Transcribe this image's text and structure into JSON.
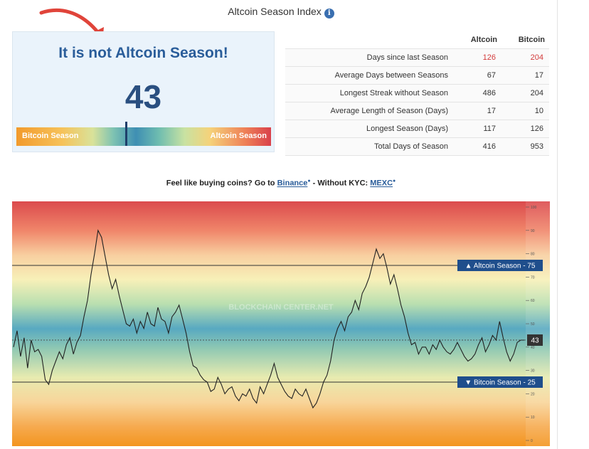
{
  "header": {
    "title": "Altcoin Season Index",
    "info_icon": "info-icon"
  },
  "status": {
    "headline": "It is not Altcoin Season!",
    "index_value": "43",
    "index_numeric": 43,
    "gauge_left_label": "Bitcoin Season",
    "gauge_right_label": "Altcoin Season"
  },
  "stats": {
    "columns": [
      "Altcoin",
      "Bitcoin"
    ],
    "rows": [
      {
        "label": "Days since last Season",
        "altcoin": "126",
        "bitcoin": "204",
        "highlight": true
      },
      {
        "label": "Average Days between Seasons",
        "altcoin": "67",
        "bitcoin": "17"
      },
      {
        "label": "Longest Streak without Season",
        "altcoin": "486",
        "bitcoin": "204"
      },
      {
        "label": "Average Length of Season (Days)",
        "altcoin": "17",
        "bitcoin": "10"
      },
      {
        "label": "Longest Season (Days)",
        "altcoin": "117",
        "bitcoin": "126"
      },
      {
        "label": "Total Days of Season",
        "altcoin": "416",
        "bitcoin": "953"
      }
    ]
  },
  "promo": {
    "prefix": "Feel like buying coins? Go to ",
    "link1": "Binance",
    "middle": " - Without KYC: ",
    "link2": "MEXC"
  },
  "colors": {
    "accent": "#2a5d9a",
    "highlight_red": "#d33a3a",
    "marker_blue": "#1f4e8c"
  },
  "chart_data": {
    "type": "line",
    "ylim": [
      0,
      100
    ],
    "yticks": [
      "0",
      "10",
      "20",
      "30",
      "40",
      "50",
      "60",
      "70",
      "80",
      "90",
      "100"
    ],
    "watermark": "BLOCKCHAIN CENTER.NET",
    "altcoin_line": {
      "value": 75,
      "label": "▲ Altcoin Season - 75"
    },
    "bitcoin_line": {
      "value": 25,
      "label": "▼ Bitcoin Season - 25"
    },
    "current": {
      "value": 43,
      "label": "43"
    },
    "series": [
      {
        "values": [
          40,
          47,
          36,
          44,
          31,
          43,
          38,
          39,
          36,
          26,
          24,
          30,
          34,
          38,
          35,
          41,
          44,
          37,
          42,
          45,
          53,
          60,
          71,
          80,
          90,
          87,
          79,
          71,
          65,
          69,
          62,
          56,
          50,
          49,
          52,
          46,
          51,
          48,
          55,
          50,
          49,
          57,
          52,
          51,
          46,
          53,
          55,
          58,
          52,
          46,
          38,
          32,
          31,
          28,
          26,
          25,
          21,
          22,
          27,
          24,
          20,
          22,
          23,
          19,
          17,
          20,
          19,
          22,
          18,
          16,
          23,
          20,
          24,
          28,
          33,
          27,
          24,
          21,
          19,
          18,
          22,
          20,
          19,
          22,
          18,
          14,
          16,
          20,
          25,
          28,
          34,
          43,
          48,
          51,
          47,
          53,
          55,
          60,
          56,
          63,
          66,
          70,
          76,
          82,
          78,
          80,
          74,
          67,
          71,
          65,
          58,
          53,
          46,
          41,
          42,
          37,
          40,
          40,
          37,
          41,
          39,
          43,
          40,
          38,
          37,
          39,
          42,
          39,
          36,
          34,
          35,
          37,
          41,
          44,
          38,
          41,
          45,
          43,
          51,
          44,
          38,
          34,
          37,
          42,
          43,
          43
        ]
      }
    ]
  }
}
